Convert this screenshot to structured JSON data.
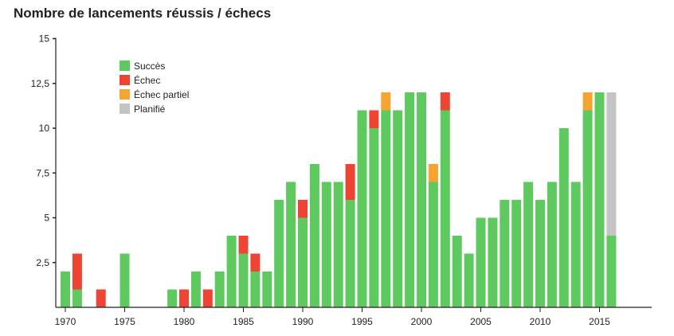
{
  "chart_data": {
    "type": "bar",
    "stacked": true,
    "title": "Nombre de lancements réussis / échecs",
    "xlabel": "",
    "ylabel": "",
    "ylim": [
      0,
      15
    ],
    "yticks": [
      2.5,
      5,
      7.5,
      10,
      12.5,
      15
    ],
    "ytick_labels": [
      "2,5",
      "5",
      "7,5",
      "10",
      "12,5",
      "15"
    ],
    "xticks": [
      1970,
      1975,
      1980,
      1985,
      1990,
      1995,
      2000,
      2005,
      2010,
      2015
    ],
    "legend_position": "top-left",
    "categories": [
      1970,
      1971,
      1972,
      1973,
      1974,
      1975,
      1976,
      1977,
      1978,
      1979,
      1980,
      1981,
      1982,
      1983,
      1984,
      1985,
      1986,
      1987,
      1988,
      1989,
      1990,
      1991,
      1992,
      1993,
      1994,
      1995,
      1996,
      1997,
      1998,
      1999,
      2000,
      2001,
      2002,
      2003,
      2004,
      2005,
      2006,
      2007,
      2008,
      2009,
      2010,
      2011,
      2012,
      2013,
      2014,
      2015,
      2016
    ],
    "series": [
      {
        "name": "Succès",
        "color": "#5ec95e",
        "values": [
          2,
          1,
          0,
          0,
          0,
          3,
          0,
          0,
          0,
          1,
          0,
          2,
          0,
          2,
          4,
          3,
          2,
          2,
          6,
          7,
          5,
          8,
          7,
          7,
          6,
          11,
          10,
          11,
          11,
          12,
          12,
          7,
          11,
          4,
          3,
          5,
          5,
          6,
          6,
          7,
          6,
          7,
          10,
          7,
          11,
          12,
          4
        ]
      },
      {
        "name": "Échec",
        "color": "#ee4433",
        "values": [
          0,
          2,
          0,
          1,
          0,
          0,
          0,
          0,
          0,
          0,
          1,
          0,
          1,
          0,
          0,
          1,
          1,
          0,
          0,
          0,
          1,
          0,
          0,
          0,
          2,
          0,
          1,
          0,
          0,
          0,
          0,
          0,
          1,
          0,
          0,
          0,
          0,
          0,
          0,
          0,
          0,
          0,
          0,
          0,
          0,
          0,
          0
        ]
      },
      {
        "name": "Échec partiel",
        "color": "#f5a431",
        "values": [
          0,
          0,
          0,
          0,
          0,
          0,
          0,
          0,
          0,
          0,
          0,
          0,
          0,
          0,
          0,
          0,
          0,
          0,
          0,
          0,
          0,
          0,
          0,
          0,
          0,
          0,
          0,
          1,
          0,
          0,
          0,
          1,
          0,
          0,
          0,
          0,
          0,
          0,
          0,
          0,
          0,
          0,
          0,
          0,
          1,
          0,
          0
        ]
      },
      {
        "name": "Planifié",
        "color": "#c4c4c4",
        "values": [
          0,
          0,
          0,
          0,
          0,
          0,
          0,
          0,
          0,
          0,
          0,
          0,
          0,
          0,
          0,
          0,
          0,
          0,
          0,
          0,
          0,
          0,
          0,
          0,
          0,
          0,
          0,
          0,
          0,
          0,
          0,
          0,
          0,
          0,
          0,
          0,
          0,
          0,
          0,
          0,
          0,
          0,
          0,
          0,
          0,
          0,
          8
        ]
      }
    ]
  }
}
